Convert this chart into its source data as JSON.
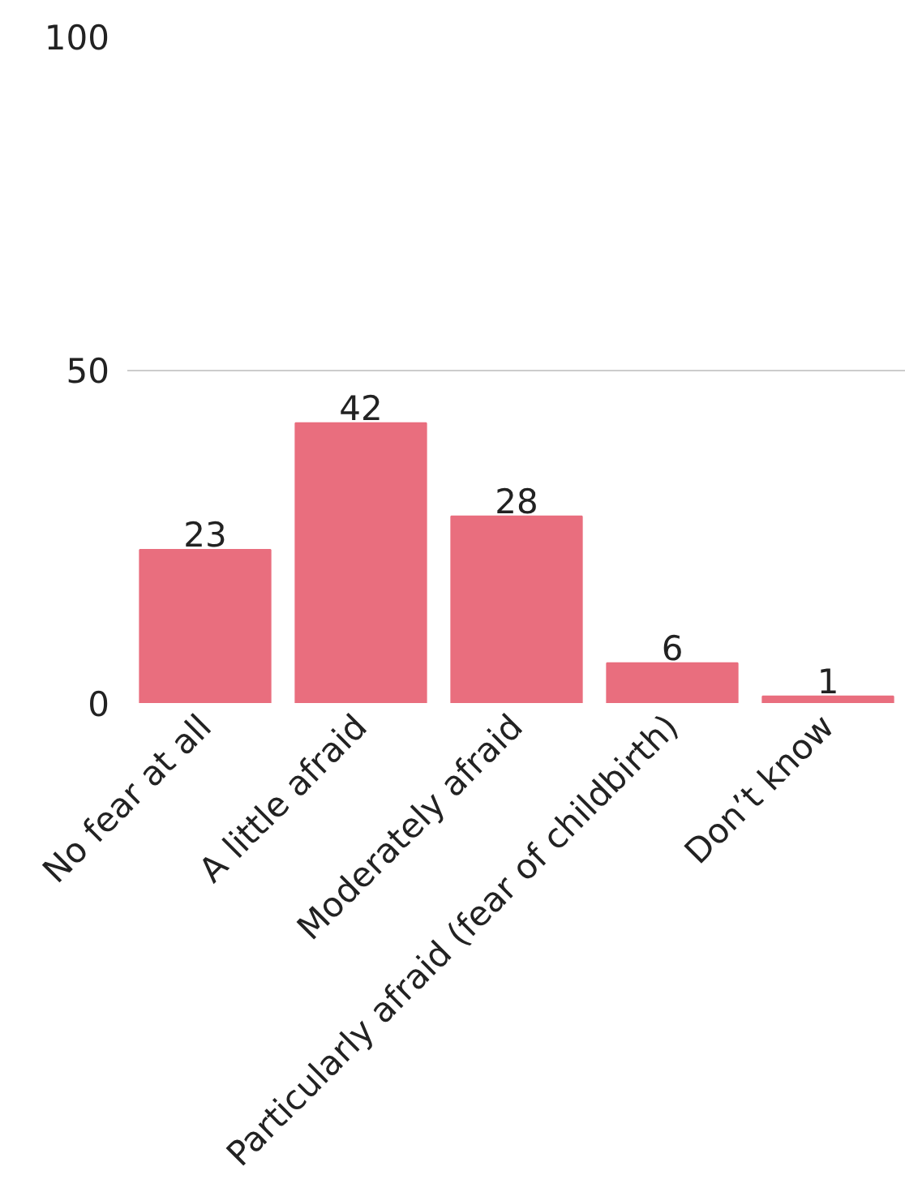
{
  "chart_data": {
    "type": "bar",
    "categories": [
      "No fear at all",
      "A little afraid",
      "Moderately afraid",
      "Particularly afraid (fear of childbirth)",
      "Don’t know"
    ],
    "values": [
      23,
      42,
      28,
      6,
      1
    ],
    "color": "#e96e7e",
    "ylim": [
      0,
      100
    ],
    "yticks": [
      0,
      50,
      100
    ],
    "grid": "y",
    "data_labels": true
  }
}
